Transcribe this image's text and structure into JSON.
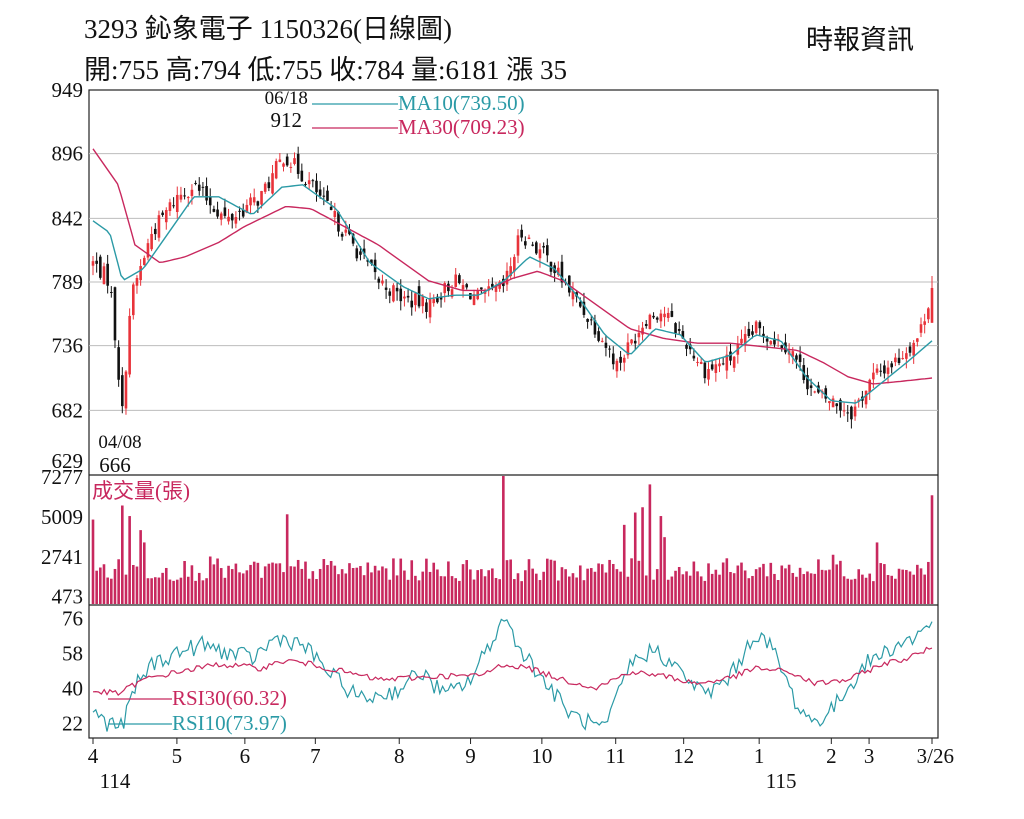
{
  "header": {
    "title": "3293  鈊象電子 1150326(日線圖)",
    "source": "時報資訊",
    "ohlc": "開:755 高:794 低:755 收:784 量:6181 漲 35"
  },
  "chart_data": {
    "type": "candlestick",
    "colors": {
      "up": "#e8333a",
      "down": "#111111",
      "ma10": "#2b9aa6",
      "ma30": "#c8285e",
      "rsi30": "#c8285e",
      "rsi10": "#2b9aa6",
      "volume": "#c8285e",
      "grid": "#bdbdbd"
    },
    "x_ticks": [
      {
        "label": "4",
        "t": 0.0
      },
      {
        "label": "5",
        "t": 0.1
      },
      {
        "label": "6",
        "t": 0.181
      },
      {
        "label": "7",
        "t": 0.265
      },
      {
        "label": "8",
        "t": 0.365
      },
      {
        "label": "9",
        "t": 0.45
      },
      {
        "label": "10",
        "t": 0.535
      },
      {
        "label": "11",
        "t": 0.623
      },
      {
        "label": "12",
        "t": 0.704
      },
      {
        "label": "1",
        "t": 0.794
      },
      {
        "label": "2",
        "t": 0.88
      },
      {
        "label": "3",
        "t": 0.925
      },
      {
        "label": "3/26",
        "t": 1.0
      }
    ],
    "year_labels": [
      {
        "label": "114",
        "t": 0.0
      },
      {
        "label": "115",
        "t": 0.794
      }
    ],
    "price_panel": {
      "y_ticks": [
        "949",
        "896",
        "842",
        "789",
        "736",
        "682",
        "629"
      ],
      "ylim": [
        629,
        949
      ],
      "legend": [
        {
          "name": "MA10(739.50)",
          "color": "#2b9aa6"
        },
        {
          "name": "MA30(709.23)",
          "color": "#c8285e"
        }
      ],
      "annotations": [
        {
          "date": "06/18",
          "value": "912",
          "t": 0.228,
          "price": 912
        },
        {
          "date": "04/08",
          "value": "666",
          "t": 0.035,
          "price": 666
        }
      ],
      "close_anchors": [
        [
          0.0,
          805
        ],
        [
          0.02,
          790
        ],
        [
          0.035,
          680
        ],
        [
          0.045,
          775
        ],
        [
          0.07,
          830
        ],
        [
          0.1,
          860
        ],
        [
          0.12,
          870
        ],
        [
          0.16,
          840
        ],
        [
          0.2,
          860
        ],
        [
          0.228,
          895
        ],
        [
          0.26,
          870
        ],
        [
          0.29,
          840
        ],
        [
          0.34,
          790
        ],
        [
          0.37,
          775
        ],
        [
          0.4,
          770
        ],
        [
          0.43,
          790
        ],
        [
          0.46,
          775
        ],
        [
          0.49,
          785
        ],
        [
          0.51,
          830
        ],
        [
          0.54,
          810
        ],
        [
          0.56,
          790
        ],
        [
          0.6,
          750
        ],
        [
          0.625,
          720
        ],
        [
          0.66,
          760
        ],
        [
          0.68,
          765
        ],
        [
          0.7,
          745
        ],
        [
          0.73,
          715
        ],
        [
          0.76,
          725
        ],
        [
          0.79,
          750
        ],
        [
          0.83,
          735
        ],
        [
          0.86,
          695
        ],
        [
          0.88,
          690
        ],
        [
          0.905,
          680
        ],
        [
          0.93,
          710
        ],
        [
          0.96,
          725
        ],
        [
          0.985,
          745
        ],
        [
          1.0,
          784
        ]
      ],
      "ma10_anchors": [
        [
          0.0,
          840
        ],
        [
          0.02,
          830
        ],
        [
          0.035,
          790
        ],
        [
          0.06,
          800
        ],
        [
          0.09,
          830
        ],
        [
          0.12,
          860
        ],
        [
          0.15,
          860
        ],
        [
          0.19,
          845
        ],
        [
          0.225,
          868
        ],
        [
          0.25,
          870
        ],
        [
          0.29,
          850
        ],
        [
          0.33,
          805
        ],
        [
          0.37,
          785
        ],
        [
          0.4,
          775
        ],
        [
          0.43,
          778
        ],
        [
          0.46,
          778
        ],
        [
          0.49,
          790
        ],
        [
          0.52,
          810
        ],
        [
          0.55,
          800
        ],
        [
          0.58,
          775
        ],
        [
          0.61,
          745
        ],
        [
          0.64,
          728
        ],
        [
          0.67,
          750
        ],
        [
          0.7,
          745
        ],
        [
          0.73,
          722
        ],
        [
          0.76,
          728
        ],
        [
          0.79,
          745
        ],
        [
          0.82,
          740
        ],
        [
          0.85,
          710
        ],
        [
          0.88,
          690
        ],
        [
          0.91,
          688
        ],
        [
          0.94,
          705
        ],
        [
          0.97,
          722
        ],
        [
          1.0,
          740
        ]
      ],
      "ma30_anchors": [
        [
          0.0,
          900
        ],
        [
          0.03,
          870
        ],
        [
          0.05,
          820
        ],
        [
          0.08,
          805
        ],
        [
          0.11,
          810
        ],
        [
          0.15,
          822
        ],
        [
          0.18,
          835
        ],
        [
          0.23,
          852
        ],
        [
          0.26,
          850
        ],
        [
          0.3,
          835
        ],
        [
          0.34,
          820
        ],
        [
          0.37,
          805
        ],
        [
          0.4,
          790
        ],
        [
          0.44,
          782
        ],
        [
          0.47,
          782
        ],
        [
          0.5,
          792
        ],
        [
          0.53,
          798
        ],
        [
          0.56,
          790
        ],
        [
          0.6,
          770
        ],
        [
          0.64,
          750
        ],
        [
          0.68,
          742
        ],
        [
          0.72,
          738
        ],
        [
          0.76,
          738
        ],
        [
          0.8,
          735
        ],
        [
          0.84,
          732
        ],
        [
          0.87,
          722
        ],
        [
          0.9,
          710
        ],
        [
          0.93,
          704
        ],
        [
          0.96,
          706
        ],
        [
          1.0,
          709
        ]
      ]
    },
    "volume_panel": {
      "label": "成交量(張)",
      "y_ticks": [
        "7277",
        "5009",
        "2741",
        "473"
      ],
      "ylim": [
        0,
        7277
      ],
      "spikes": [
        [
          0.0,
          4800
        ],
        [
          0.035,
          5600
        ],
        [
          0.045,
          5000
        ],
        [
          0.055,
          4200
        ],
        [
          0.06,
          3500
        ],
        [
          0.12,
          2200
        ],
        [
          0.14,
          2700
        ],
        [
          0.175,
          1800
        ],
        [
          0.23,
          5100
        ],
        [
          0.49,
          7277
        ],
        [
          0.635,
          4500
        ],
        [
          0.645,
          5200
        ],
        [
          0.655,
          5500
        ],
        [
          0.665,
          6800
        ],
        [
          0.675,
          5000
        ],
        [
          0.68,
          3800
        ],
        [
          0.88,
          2800
        ],
        [
          0.935,
          3500
        ],
        [
          1.0,
          6181
        ]
      ],
      "base": 1300
    },
    "rsi_panel": {
      "y_ticks": [
        "76",
        "58",
        "40",
        "22"
      ],
      "ylim": [
        14,
        82
      ],
      "legend": [
        {
          "name": "RSI30(60.32)",
          "color": "#c8285e"
        },
        {
          "name": "RSI10(73.97)",
          "color": "#2b9aa6"
        }
      ],
      "rsi30_anchors": [
        [
          0.0,
          38
        ],
        [
          0.03,
          37
        ],
        [
          0.06,
          44
        ],
        [
          0.1,
          48
        ],
        [
          0.15,
          52
        ],
        [
          0.2,
          50
        ],
        [
          0.23,
          54
        ],
        [
          0.26,
          52
        ],
        [
          0.3,
          48
        ],
        [
          0.34,
          44
        ],
        [
          0.38,
          45
        ],
        [
          0.42,
          46
        ],
        [
          0.46,
          46
        ],
        [
          0.49,
          52
        ],
        [
          0.52,
          50
        ],
        [
          0.56,
          44
        ],
        [
          0.6,
          40
        ],
        [
          0.64,
          48
        ],
        [
          0.68,
          46
        ],
        [
          0.72,
          42
        ],
        [
          0.76,
          45
        ],
        [
          0.79,
          50
        ],
        [
          0.83,
          48
        ],
        [
          0.86,
          42
        ],
        [
          0.9,
          44
        ],
        [
          0.94,
          52
        ],
        [
          0.97,
          55
        ],
        [
          1.0,
          60.32
        ]
      ],
      "rsi10_anchors": [
        [
          0.0,
          28
        ],
        [
          0.015,
          22
        ],
        [
          0.035,
          20
        ],
        [
          0.05,
          40
        ],
        [
          0.07,
          52
        ],
        [
          0.1,
          58
        ],
        [
          0.13,
          62
        ],
        [
          0.16,
          58
        ],
        [
          0.19,
          55
        ],
        [
          0.22,
          66
        ],
        [
          0.25,
          62
        ],
        [
          0.29,
          44
        ],
        [
          0.32,
          34
        ],
        [
          0.36,
          38
        ],
        [
          0.39,
          48
        ],
        [
          0.42,
          36
        ],
        [
          0.45,
          44
        ],
        [
          0.49,
          76
        ],
        [
          0.51,
          60
        ],
        [
          0.54,
          42
        ],
        [
          0.57,
          26
        ],
        [
          0.61,
          18
        ],
        [
          0.64,
          52
        ],
        [
          0.67,
          60
        ],
        [
          0.7,
          48
        ],
        [
          0.73,
          36
        ],
        [
          0.76,
          46
        ],
        [
          0.79,
          68
        ],
        [
          0.81,
          60
        ],
        [
          0.84,
          30
        ],
        [
          0.86,
          22
        ],
        [
          0.88,
          28
        ],
        [
          0.9,
          40
        ],
        [
          0.92,
          52
        ],
        [
          0.95,
          60
        ],
        [
          0.98,
          66
        ],
        [
          1.0,
          73.97
        ]
      ]
    }
  }
}
